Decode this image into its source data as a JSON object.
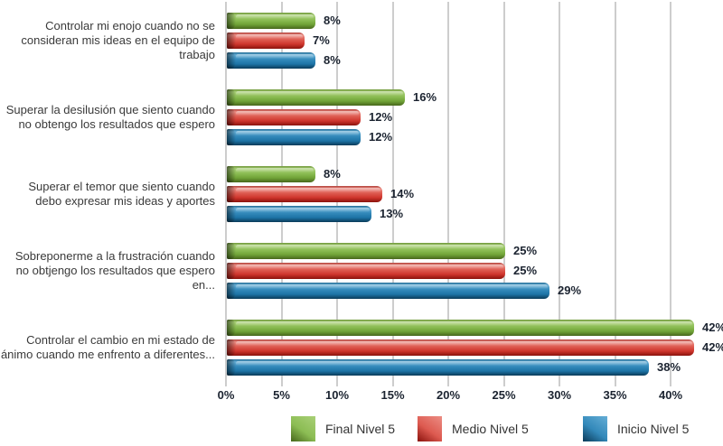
{
  "chart_data": {
    "type": "bar",
    "orientation": "horizontal",
    "title": "",
    "xlabel": "",
    "ylabel": "",
    "value_suffix": "%",
    "grid": true,
    "legend_position": "bottom",
    "categories": [
      "Controlar mi enojo cuando no se consideran mis ideas en el equipo de trabajo",
      "Superar la desilusión que siento cuando no obtengo los resultados que espero",
      "Superar el temor que siento cuando debo expresar mis ideas y aportes",
      "Sobreponerme a la frustración cuando no obtjengo los resultados que espero en...",
      "Controlar el cambio en mi estado de ánimo cuando me enfrento a diferentes..."
    ],
    "series": [
      {
        "name": "Final Nivel 5",
        "values": [
          8,
          16,
          8,
          25,
          42
        ],
        "color": "#7FB23F",
        "gradient": {
          "edge": "#6d9638",
          "light": "#a9d077",
          "base": "#8cbd54",
          "mid": "#71a438",
          "dark": "#47671b"
        }
      },
      {
        "name": "Medio Nivel 5",
        "values": [
          7,
          12,
          14,
          25,
          42
        ],
        "color": "#D7463D",
        "gradient": {
          "edge": "#b0413a",
          "light": "#ec8d84",
          "base": "#dd5a50",
          "mid": "#ce352c",
          "dark": "#8a120d"
        }
      },
      {
        "name": "Inicio Nivel 5",
        "values": [
          8,
          12,
          13,
          29,
          38
        ],
        "color": "#2980B4",
        "gradient": {
          "edge": "#256d95",
          "light": "#65aed6",
          "base": "#3389ba",
          "mid": "#1d74a6",
          "dark": "#0a3a58"
        }
      }
    ],
    "axis": {
      "min": 0,
      "max": 40,
      "step": 5,
      "tick_labels": [
        "0%",
        "5%",
        "10%",
        "15%",
        "20%",
        "25%",
        "30%",
        "35%",
        "40%"
      ]
    },
    "legend": [
      "Final Nivel 5",
      "Medio Nivel 5",
      "Inicio Nivel 5"
    ]
  },
  "colors": {
    "gridline": "#cdcdcd",
    "value_label": "#1b2330",
    "category_label": "#3a3a3a",
    "background": "#ffffff"
  }
}
